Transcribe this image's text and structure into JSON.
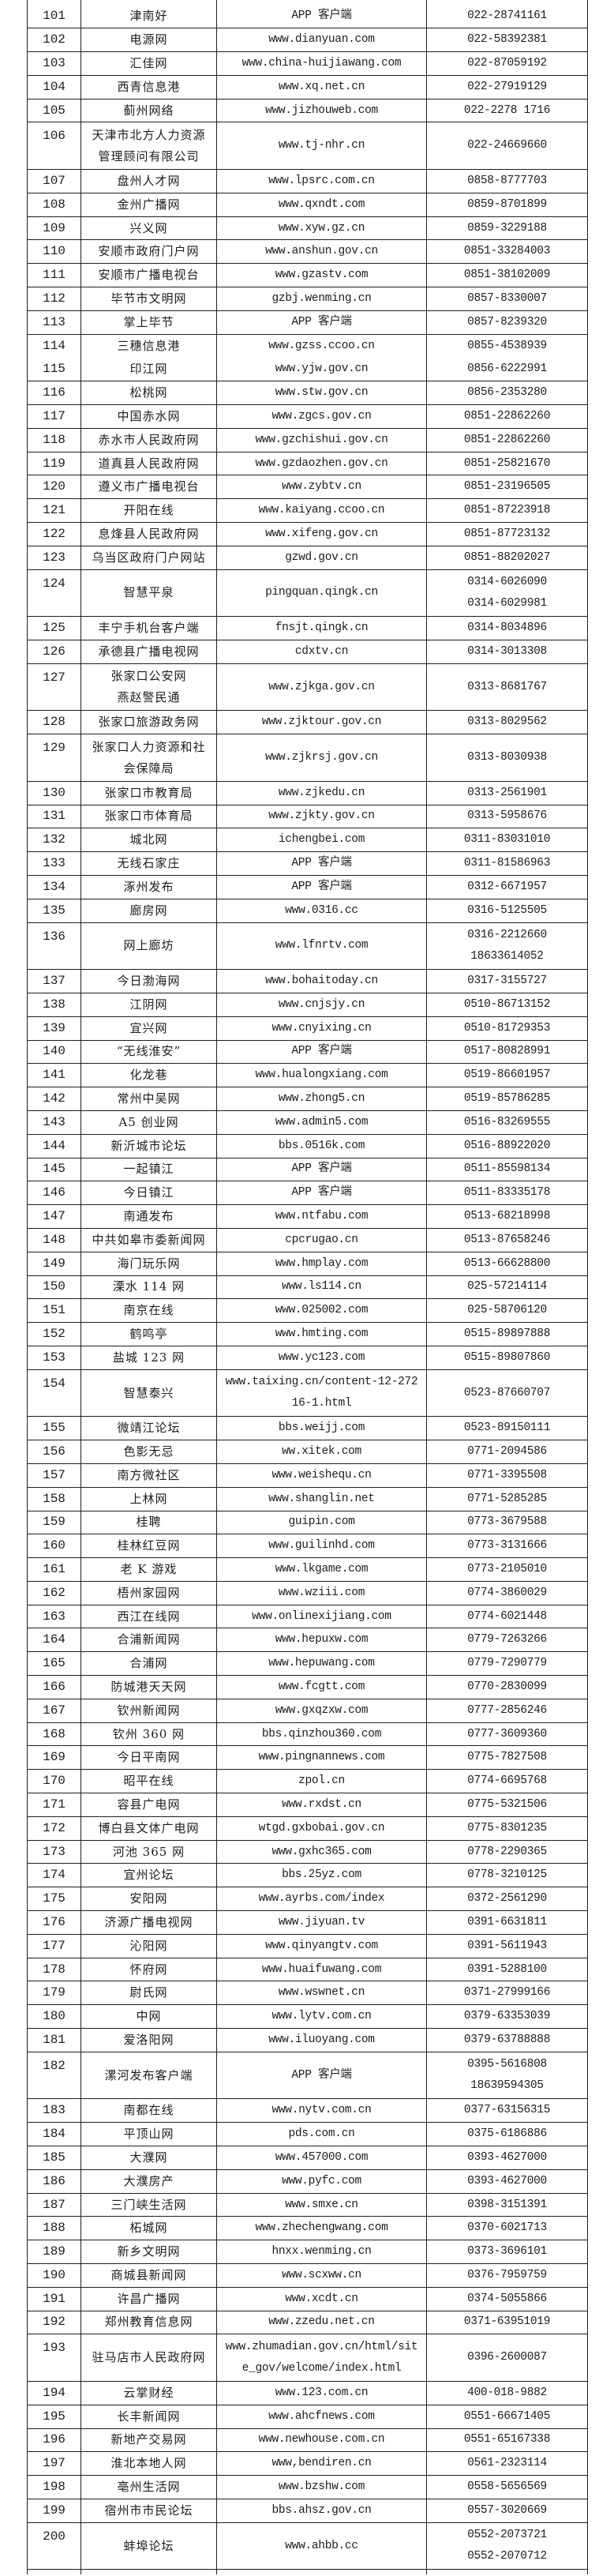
{
  "colors": {
    "background": "#ffffff",
    "border": "#1f1f1f",
    "text": "#1c1c1c"
  },
  "table": {
    "rows": [
      {
        "n": "101",
        "name": [
          "津南好"
        ],
        "url": [
          "APP 客户端"
        ],
        "tel": [
          "022-28741161"
        ]
      },
      {
        "n": "102",
        "name": [
          "电源网"
        ],
        "url": [
          "www.dianyuan.com"
        ],
        "tel": [
          "022-58392381"
        ]
      },
      {
        "n": "103",
        "name": [
          "汇佳网"
        ],
        "url": [
          "www.china-huijiawang.com"
        ],
        "tel": [
          "022-87059192"
        ]
      },
      {
        "n": "104",
        "name": [
          "西青信息港"
        ],
        "url": [
          "www.xq.net.cn"
        ],
        "tel": [
          "022-27919129"
        ]
      },
      {
        "n": "105",
        "name": [
          "蓟州网络"
        ],
        "url": [
          "www.jizhouweb.com"
        ],
        "tel": [
          "022-2278 1716"
        ]
      },
      {
        "n": "106",
        "name": [
          "天津市北方人力资源",
          "管理顾问有限公司"
        ],
        "url": [
          "www.tj-nhr.cn"
        ],
        "tel": [
          "022-24669660"
        ]
      },
      {
        "n": "107",
        "name": [
          "盘州人才网"
        ],
        "url": [
          "www.lpsrc.com.cn"
        ],
        "tel": [
          "0858-8777703"
        ]
      },
      {
        "n": "108",
        "name": [
          "金州广播网"
        ],
        "url": [
          "www.qxndt.com"
        ],
        "tel": [
          "0859-8701899"
        ]
      },
      {
        "n": "109",
        "name": [
          "兴义网"
        ],
        "url": [
          "www.xyw.gz.cn"
        ],
        "tel": [
          "0859-3229188"
        ]
      },
      {
        "n": "110",
        "name": [
          "安顺市政府门户网"
        ],
        "url": [
          "www.anshun.gov.cn"
        ],
        "tel": [
          "0851-33284003"
        ]
      },
      {
        "n": "111",
        "name": [
          "安顺市广播电视台"
        ],
        "url": [
          "www.gzastv.com"
        ],
        "tel": [
          "0851-38102009"
        ]
      },
      {
        "n": "112",
        "name": [
          "毕节市文明网"
        ],
        "url": [
          "gzbj.wenming.cn"
        ],
        "tel": [
          "0857-8330007"
        ]
      },
      {
        "n": "113",
        "name": [
          "掌上毕节"
        ],
        "url": [
          "APP 客户端"
        ],
        "tel": [
          "0857-8239320"
        ]
      },
      {
        "n": "114",
        "name": [
          "三穗信息港"
        ],
        "url": [
          "www.gzss.ccoo.cn"
        ],
        "tel": [
          "0855-4538939"
        ]
      },
      {
        "n": "115",
        "name": [
          "印江网"
        ],
        "url": [
          "www.yjw.gov.cn"
        ],
        "tel": [
          "0856-6222991"
        ],
        "m": true
      },
      {
        "n": "116",
        "name": [
          "松桃网"
        ],
        "url": [
          "www.stw.gov.cn"
        ],
        "tel": [
          "0856-2353280"
        ]
      },
      {
        "n": "117",
        "name": [
          "中国赤水网"
        ],
        "url": [
          "www.zgcs.gov.cn"
        ],
        "tel": [
          "0851-22862260"
        ]
      },
      {
        "n": "118",
        "name": [
          "赤水市人民政府网"
        ],
        "url": [
          "www.gzchishui.gov.cn"
        ],
        "tel": [
          "0851-22862260"
        ]
      },
      {
        "n": "119",
        "name": [
          "道真县人民政府网"
        ],
        "url": [
          "www.gzdaozhen.gov.cn"
        ],
        "tel": [
          "0851-25821670"
        ]
      },
      {
        "n": "120",
        "name": [
          "遵义市广播电视台"
        ],
        "url": [
          "www.zybtv.cn"
        ],
        "tel": [
          "0851-23196505"
        ]
      },
      {
        "n": "121",
        "name": [
          "开阳在线"
        ],
        "url": [
          "www.kaiyang.ccoo.cn"
        ],
        "tel": [
          "0851-87223918"
        ]
      },
      {
        "n": "122",
        "name": [
          "息烽县人民政府网"
        ],
        "url": [
          "www.xifeng.gov.cn"
        ],
        "tel": [
          "0851-87723132"
        ]
      },
      {
        "n": "123",
        "name": [
          "乌当区政府门户网站"
        ],
        "url": [
          "gzwd.gov.cn"
        ],
        "tel": [
          "0851-88202027"
        ]
      },
      {
        "n": "124",
        "name": [
          "智慧平泉"
        ],
        "url": [
          "pingquan.qingk.cn"
        ],
        "tel": [
          "0314-6026090",
          "0314-6029981"
        ]
      },
      {
        "n": "125",
        "name": [
          "丰宁手机台客户端"
        ],
        "url": [
          "fnsjt.qingk.cn"
        ],
        "tel": [
          "0314-8034896"
        ]
      },
      {
        "n": "126",
        "name": [
          "承德县广播电视网"
        ],
        "url": [
          "cdxtv.cn"
        ],
        "tel": [
          "0314-3013308"
        ]
      },
      {
        "n": "127",
        "name": [
          "张家口公安网",
          "燕赵警民通"
        ],
        "url": [
          "www.zjkga.gov.cn"
        ],
        "tel": [
          "0313-8681767"
        ]
      },
      {
        "n": "128",
        "name": [
          "张家口旅游政务网"
        ],
        "url": [
          "www.zjktour.gov.cn"
        ],
        "tel": [
          "0313-8029562"
        ]
      },
      {
        "n": "129",
        "name": [
          "张家口人力资源和社",
          "会保障局"
        ],
        "url": [
          "www.zjkrsj.gov.cn"
        ],
        "tel": [
          "0313-8030938"
        ]
      },
      {
        "n": "130",
        "name": [
          "张家口市教育局"
        ],
        "url": [
          "www.zjkedu.cn"
        ],
        "tel": [
          "0313-2561901"
        ]
      },
      {
        "n": "131",
        "name": [
          "张家口市体育局"
        ],
        "url": [
          "www.zjkty.gov.cn"
        ],
        "tel": [
          "0313-5958676"
        ]
      },
      {
        "n": "132",
        "name": [
          "城北网"
        ],
        "url": [
          "ichengbei.com"
        ],
        "tel": [
          "0311-83031010"
        ]
      },
      {
        "n": "133",
        "name": [
          "无线石家庄"
        ],
        "url": [
          "APP 客户端"
        ],
        "tel": [
          "0311-81586963"
        ]
      },
      {
        "n": "134",
        "name": [
          "涿州发布"
        ],
        "url": [
          "APP 客户端"
        ],
        "tel": [
          "0312-6671957"
        ]
      },
      {
        "n": "135",
        "name": [
          "廊房网"
        ],
        "url": [
          "www.0316.cc"
        ],
        "tel": [
          "0316-5125505"
        ]
      },
      {
        "n": "136",
        "name": [
          "网上廊坊"
        ],
        "url": [
          "www.lfnrtv.com"
        ],
        "tel": [
          "0316-2212660",
          "18633614052"
        ]
      },
      {
        "n": "137",
        "name": [
          "今日渤海网"
        ],
        "url": [
          "www.bohaitoday.cn"
        ],
        "tel": [
          "0317-3155727"
        ]
      },
      {
        "n": "138",
        "name": [
          "江阴网"
        ],
        "url": [
          "www.cnjsjy.cn"
        ],
        "tel": [
          "0510-86713152"
        ]
      },
      {
        "n": "139",
        "name": [
          "宜兴网"
        ],
        "url": [
          "www.cnyixing.cn"
        ],
        "tel": [
          "0510-81729353"
        ]
      },
      {
        "n": "140",
        "name": [
          "“无线淮安”"
        ],
        "url": [
          "APP 客户端"
        ],
        "tel": [
          "0517-80828991"
        ]
      },
      {
        "n": "141",
        "name": [
          "化龙巷"
        ],
        "url": [
          "www.hualongxiang.com"
        ],
        "tel": [
          "0519-86601957"
        ]
      },
      {
        "n": "142",
        "name": [
          "常州中吴网"
        ],
        "url": [
          "www.zhong5.cn"
        ],
        "tel": [
          "0519-85786285"
        ]
      },
      {
        "n": "143",
        "name": [
          "A5 创业网"
        ],
        "url": [
          "www.admin5.com"
        ],
        "tel": [
          "0516-83269555"
        ]
      },
      {
        "n": "144",
        "name": [
          "新沂城市论坛"
        ],
        "url": [
          "bbs.0516k.com"
        ],
        "tel": [
          "0516-88922020"
        ]
      },
      {
        "n": "145",
        "name": [
          "一起镇江"
        ],
        "url": [
          "APP 客户端"
        ],
        "tel": [
          "0511-85598134"
        ]
      },
      {
        "n": "146",
        "name": [
          "今日镇江"
        ],
        "url": [
          "APP 客户端"
        ],
        "tel": [
          "0511-83335178"
        ]
      },
      {
        "n": "147",
        "name": [
          "南通发布"
        ],
        "url": [
          "www.ntfabu.com"
        ],
        "tel": [
          "0513-68218998"
        ]
      },
      {
        "n": "148",
        "name": [
          "中共如皋市委新闻网"
        ],
        "url": [
          "cpcrugao.cn"
        ],
        "tel": [
          "0513-87658246"
        ]
      },
      {
        "n": "149",
        "name": [
          "海门玩乐网"
        ],
        "url": [
          "www.hmplay.com"
        ],
        "tel": [
          "0513-66628800"
        ]
      },
      {
        "n": "150",
        "name": [
          "溧水 114 网"
        ],
        "url": [
          "www.ls114.cn"
        ],
        "tel": [
          "025-57214114"
        ]
      },
      {
        "n": "151",
        "name": [
          "南京在线"
        ],
        "url": [
          "www.025002.com"
        ],
        "tel": [
          "025-58706120"
        ]
      },
      {
        "n": "152",
        "name": [
          "鹤鸣亭"
        ],
        "url": [
          "www.hmting.com"
        ],
        "tel": [
          "0515-89897888"
        ]
      },
      {
        "n": "153",
        "name": [
          "盐城 123 网"
        ],
        "url": [
          "www.yc123.com"
        ],
        "tel": [
          "0515-89807860"
        ]
      },
      {
        "n": "154",
        "name": [
          "智慧泰兴"
        ],
        "url": [
          "www.taixing.cn/content-12-272",
          "16-1.html"
        ],
        "tel": [
          "0523-87660707"
        ]
      },
      {
        "n": "155",
        "name": [
          "微靖江论坛"
        ],
        "url": [
          "bbs.weijj.com"
        ],
        "tel": [
          "0523-89150111"
        ]
      },
      {
        "n": "156",
        "name": [
          "色影无忌"
        ],
        "url": [
          "ww.xitek.com"
        ],
        "tel": [
          "0771-2094586"
        ]
      },
      {
        "n": "157",
        "name": [
          "南方微社区"
        ],
        "url": [
          "www.weishequ.cn"
        ],
        "tel": [
          "0771-3395508"
        ]
      },
      {
        "n": "158",
        "name": [
          "上林网"
        ],
        "url": [
          "www.shanglin.net"
        ],
        "tel": [
          "0771-5285285"
        ]
      },
      {
        "n": "159",
        "name": [
          "桂聘"
        ],
        "url": [
          "guipin.com"
        ],
        "tel": [
          "0773-3679588"
        ]
      },
      {
        "n": "160",
        "name": [
          "桂林红豆网"
        ],
        "url": [
          "www.guilinhd.com"
        ],
        "tel": [
          "0773-3131666"
        ]
      },
      {
        "n": "161",
        "name": [
          "老 K 游戏"
        ],
        "url": [
          "www.lkgame.com"
        ],
        "tel": [
          "0773-2105010"
        ]
      },
      {
        "n": "162",
        "name": [
          "梧州家园网"
        ],
        "url": [
          "www.wziii.com"
        ],
        "tel": [
          "0774-3860029"
        ]
      },
      {
        "n": "163",
        "name": [
          "西江在线网"
        ],
        "url": [
          "www.onlinexijiang.com"
        ],
        "tel": [
          "0774-6021448"
        ]
      },
      {
        "n": "164",
        "name": [
          "合浦新闻网"
        ],
        "url": [
          "www.hepuxw.com"
        ],
        "tel": [
          "0779-7263266"
        ]
      },
      {
        "n": "165",
        "name": [
          "合浦网"
        ],
        "url": [
          "www.hepuwang.com"
        ],
        "tel": [
          "0779-7290779"
        ]
      },
      {
        "n": "166",
        "name": [
          "防城港天天网"
        ],
        "url": [
          "www.fcgtt.com"
        ],
        "tel": [
          "0770-2830099"
        ]
      },
      {
        "n": "167",
        "name": [
          "钦州新闻网"
        ],
        "url": [
          "www.gxqzxw.com"
        ],
        "tel": [
          "0777-2856246"
        ]
      },
      {
        "n": "168",
        "name": [
          "钦州 360 网"
        ],
        "url": [
          "bbs.qinzhou360.com"
        ],
        "tel": [
          "0777-3609360"
        ]
      },
      {
        "n": "169",
        "name": [
          "今日平南网"
        ],
        "url": [
          "www.pingnannews.com"
        ],
        "tel": [
          "0775-7827508"
        ]
      },
      {
        "n": "170",
        "name": [
          "昭平在线"
        ],
        "url": [
          "zpol.cn"
        ],
        "tel": [
          "0774-6695768"
        ]
      },
      {
        "n": "171",
        "name": [
          "容县广电网"
        ],
        "url": [
          "www.rxdst.cn"
        ],
        "tel": [
          "0775-5321506"
        ]
      },
      {
        "n": "172",
        "name": [
          "博白县文体广电网"
        ],
        "url": [
          "wtgd.gxbobai.gov.cn"
        ],
        "tel": [
          "0775-8301235"
        ]
      },
      {
        "n": "173",
        "name": [
          "河池 365 网"
        ],
        "url": [
          "www.gxhc365.com"
        ],
        "tel": [
          "0778-2290365"
        ]
      },
      {
        "n": "174",
        "name": [
          "宜州论坛"
        ],
        "url": [
          "bbs.25yz.com"
        ],
        "tel": [
          "0778-3210125"
        ]
      },
      {
        "n": "175",
        "name": [
          "安阳网"
        ],
        "url": [
          "www.ayrbs.com/index"
        ],
        "tel": [
          "0372-2561290"
        ]
      },
      {
        "n": "176",
        "name": [
          "济源广播电视网"
        ],
        "url": [
          "www.jiyuan.tv"
        ],
        "tel": [
          "0391-6631811"
        ]
      },
      {
        "n": "177",
        "name": [
          "沁阳网"
        ],
        "url": [
          "www.qinyangtv.com"
        ],
        "tel": [
          "0391-5611943"
        ]
      },
      {
        "n": "178",
        "name": [
          "怀府网"
        ],
        "url": [
          "www.huaifuwang.com"
        ],
        "tel": [
          "0391-5288100"
        ]
      },
      {
        "n": "179",
        "name": [
          "尉氏网"
        ],
        "url": [
          "www.wswnet.cn"
        ],
        "tel": [
          "0371-27999166"
        ]
      },
      {
        "n": "180",
        "name": [
          "中网"
        ],
        "url": [
          "www.lytv.com.cn"
        ],
        "tel": [
          "0379-63353039"
        ]
      },
      {
        "n": "181",
        "name": [
          "爱洛阳网"
        ],
        "url": [
          "www.iluoyang.com"
        ],
        "tel": [
          "0379-63788888"
        ]
      },
      {
        "n": "182",
        "name": [
          "漯河发布客户端"
        ],
        "url": [
          "APP 客户端"
        ],
        "tel": [
          "0395-5616808",
          "18639594305"
        ]
      },
      {
        "n": "183",
        "name": [
          "南都在线"
        ],
        "url": [
          "www.nytv.com.cn"
        ],
        "tel": [
          "0377-63156315"
        ]
      },
      {
        "n": "184",
        "name": [
          "平顶山网"
        ],
        "url": [
          "pds.com.cn"
        ],
        "tel": [
          "0375-6186886"
        ]
      },
      {
        "n": "185",
        "name": [
          "大濮网"
        ],
        "url": [
          "www.457000.com"
        ],
        "tel": [
          "0393-4627000"
        ]
      },
      {
        "n": "186",
        "name": [
          "大濮房产"
        ],
        "url": [
          "www.pyfc.com"
        ],
        "tel": [
          "0393-4627000"
        ]
      },
      {
        "n": "187",
        "name": [
          "三门峡生活网"
        ],
        "url": [
          "www.smxe.cn"
        ],
        "tel": [
          "0398-3151391"
        ]
      },
      {
        "n": "188",
        "name": [
          "柘城网"
        ],
        "url": [
          "www.zhechengwang.com"
        ],
        "tel": [
          "0370-6021713"
        ]
      },
      {
        "n": "189",
        "name": [
          "新乡文明网"
        ],
        "url": [
          "hnxx.wenming.cn"
        ],
        "tel": [
          "0373-3696101"
        ]
      },
      {
        "n": "190",
        "name": [
          "商城县新闻网"
        ],
        "url": [
          "www.scxww.cn"
        ],
        "tel": [
          "0376-7959759"
        ]
      },
      {
        "n": "191",
        "name": [
          "许昌广播网"
        ],
        "url": [
          "www.xcdt.cn"
        ],
        "tel": [
          "0374-5055866"
        ]
      },
      {
        "n": "192",
        "name": [
          "郑州教育信息网"
        ],
        "url": [
          "www.zzedu.net.cn"
        ],
        "tel": [
          "0371-63951019"
        ]
      },
      {
        "n": "193",
        "name": [
          "驻马店市人民政府网"
        ],
        "url": [
          "www.zhumadian.gov.cn/html/sit",
          "e_gov/welcome/index.html"
        ],
        "tel": [
          "0396-2600087"
        ]
      },
      {
        "n": "194",
        "name": [
          "云掌财经"
        ],
        "url": [
          "www.123.com.cn"
        ],
        "tel": [
          "400-018-9882"
        ]
      },
      {
        "n": "195",
        "name": [
          "长丰新闻网"
        ],
        "url": [
          "www.ahcfnews.com"
        ],
        "tel": [
          "0551-66671405"
        ]
      },
      {
        "n": "196",
        "name": [
          "新地产交易网"
        ],
        "url": [
          "www.newhouse.com.cn"
        ],
        "tel": [
          "0551-65167338"
        ]
      },
      {
        "n": "197",
        "name": [
          "淮北本地人网"
        ],
        "url": [
          "www,bendiren.cn"
        ],
        "tel": [
          "0561-2323114"
        ]
      },
      {
        "n": "198",
        "name": [
          "亳州生活网"
        ],
        "url": [
          "www.bzshw.com"
        ],
        "tel": [
          "0558-5656569"
        ]
      },
      {
        "n": "199",
        "name": [
          "宿州市市民论坛"
        ],
        "url": [
          "bbs.ahsz.gov.cn"
        ],
        "tel": [
          "0557-3020669"
        ]
      },
      {
        "n": "200",
        "name": [
          "蚌埠论坛"
        ],
        "url": [
          "www.ahbb.cc"
        ],
        "tel": [
          "0552-2073721",
          "0552-2070712"
        ]
      }
    ]
  }
}
